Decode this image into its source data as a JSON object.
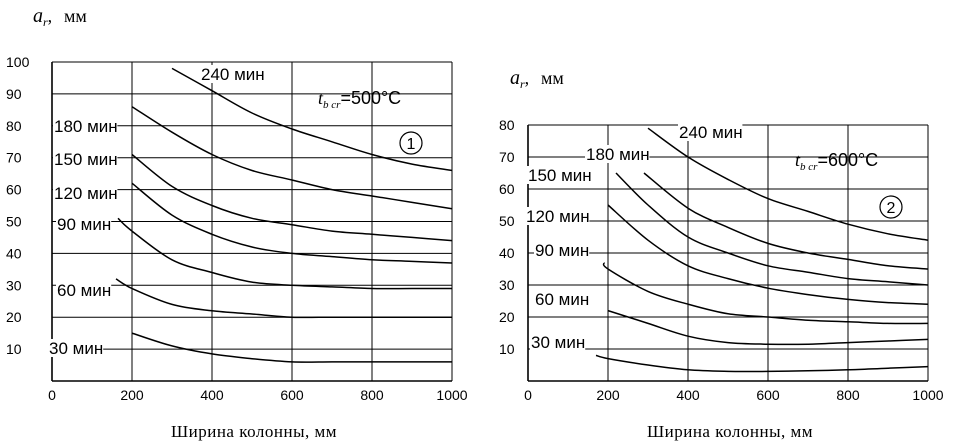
{
  "chart_data": [
    {
      "type": "line",
      "panel_badge": "1",
      "annotation": {
        "symbol": "t",
        "subscript": "b cr",
        "value": "=500°C"
      },
      "ylabel": {
        "symbol": "a",
        "subscript": "r",
        "unit": "мм"
      },
      "xlabel": "Ширина колонны, мм",
      "xlim": [
        0,
        1000
      ],
      "ylim": [
        0,
        100
      ],
      "x_ticks": [
        "0",
        "200",
        "400",
        "600",
        "800",
        "1000"
      ],
      "y_ticks": [
        "10",
        "20",
        "30",
        "40",
        "50",
        "60",
        "70",
        "80",
        "90",
        "100"
      ],
      "series": [
        {
          "name": "30 мин",
          "x": [
            200,
            300,
            400,
            500,
            600,
            700,
            800,
            900,
            1000
          ],
          "y": [
            15,
            11,
            8.5,
            7,
            6,
            6,
            6,
            6,
            6
          ]
        },
        {
          "name": "60 мин",
          "x": [
            160,
            200,
            300,
            400,
            500,
            600,
            700,
            800,
            900,
            1000
          ],
          "y": [
            32,
            29,
            24,
            22,
            21,
            20,
            20,
            20,
            20,
            20
          ]
        },
        {
          "name": "90 мин",
          "x": [
            165,
            200,
            300,
            400,
            500,
            600,
            700,
            800,
            900,
            1000
          ],
          "y": [
            51,
            47,
            38,
            34,
            31,
            30,
            29.5,
            29,
            29,
            29
          ]
        },
        {
          "name": "120 мин",
          "x": [
            200,
            300,
            400,
            500,
            600,
            700,
            800,
            900,
            1000
          ],
          "y": [
            62,
            52,
            46,
            42,
            40,
            39,
            38,
            37.5,
            37
          ]
        },
        {
          "name": "150 мин",
          "x": [
            200,
            300,
            400,
            500,
            600,
            700,
            800,
            900,
            1000
          ],
          "y": [
            71,
            61,
            55,
            51,
            49,
            47,
            46,
            45,
            44
          ]
        },
        {
          "name": "180 мин",
          "x": [
            200,
            300,
            400,
            500,
            600,
            700,
            800,
            900,
            1000
          ],
          "y": [
            86,
            78,
            71,
            66,
            63,
            60,
            58,
            56,
            54
          ]
        },
        {
          "name": "240 мин",
          "x": [
            300,
            400,
            500,
            600,
            700,
            800,
            900,
            1000
          ],
          "y": [
            98,
            91,
            84,
            79,
            75,
            71,
            68,
            66
          ]
        }
      ]
    },
    {
      "type": "line",
      "panel_badge": "2",
      "annotation": {
        "symbol": "t",
        "subscript": "b cr",
        "value": "=600°C"
      },
      "ylabel": {
        "symbol": "a",
        "subscript": "r",
        "unit": "мм"
      },
      "xlabel": "Ширина колонны, мм",
      "xlim": [
        0,
        1000
      ],
      "ylim": [
        0,
        80
      ],
      "x_ticks": [
        "0",
        "200",
        "400",
        "600",
        "800",
        "1000"
      ],
      "y_ticks": [
        "10",
        "20",
        "30",
        "40",
        "50",
        "60",
        "70",
        "80"
      ],
      "series": [
        {
          "name": "30 мин",
          "x": [
            170,
            200,
            300,
            400,
            500,
            600,
            700,
            800,
            900,
            1000
          ],
          "y": [
            8,
            7,
            5,
            3.5,
            3,
            3,
            3.2,
            3.5,
            4,
            4.5
          ]
        },
        {
          "name": "60 мин",
          "x": [
            200,
            300,
            400,
            500,
            600,
            700,
            800,
            900,
            1000
          ],
          "y": [
            22,
            18,
            14,
            12,
            11.5,
            11.5,
            12,
            12.5,
            13
          ]
        },
        {
          "name": "90 мин",
          "x": [
            190,
            200,
            300,
            400,
            500,
            600,
            700,
            800,
            900,
            1000
          ],
          "y": [
            37,
            35,
            28,
            24,
            21,
            20,
            19,
            18.5,
            18,
            18
          ]
        },
        {
          "name": "120 мин",
          "x": [
            200,
            300,
            400,
            500,
            600,
            700,
            800,
            900,
            1000
          ],
          "y": [
            55,
            44,
            36,
            32,
            29,
            27,
            25.5,
            24.5,
            24
          ]
        },
        {
          "name": "150 мин",
          "x": [
            220,
            300,
            400,
            500,
            600,
            700,
            800,
            900,
            1000
          ],
          "y": [
            65,
            55,
            45,
            40,
            36,
            34,
            32,
            31,
            30
          ]
        },
        {
          "name": "180 мин",
          "x": [
            290,
            400,
            500,
            600,
            700,
            800,
            900,
            1000
          ],
          "y": [
            65,
            54,
            48,
            43,
            40,
            38,
            36,
            35
          ]
        },
        {
          "name": "240 мин",
          "x": [
            300,
            400,
            500,
            600,
            700,
            800,
            900,
            1000
          ],
          "y": [
            79,
            70,
            63,
            57,
            53,
            49,
            46,
            44
          ]
        }
      ]
    }
  ]
}
